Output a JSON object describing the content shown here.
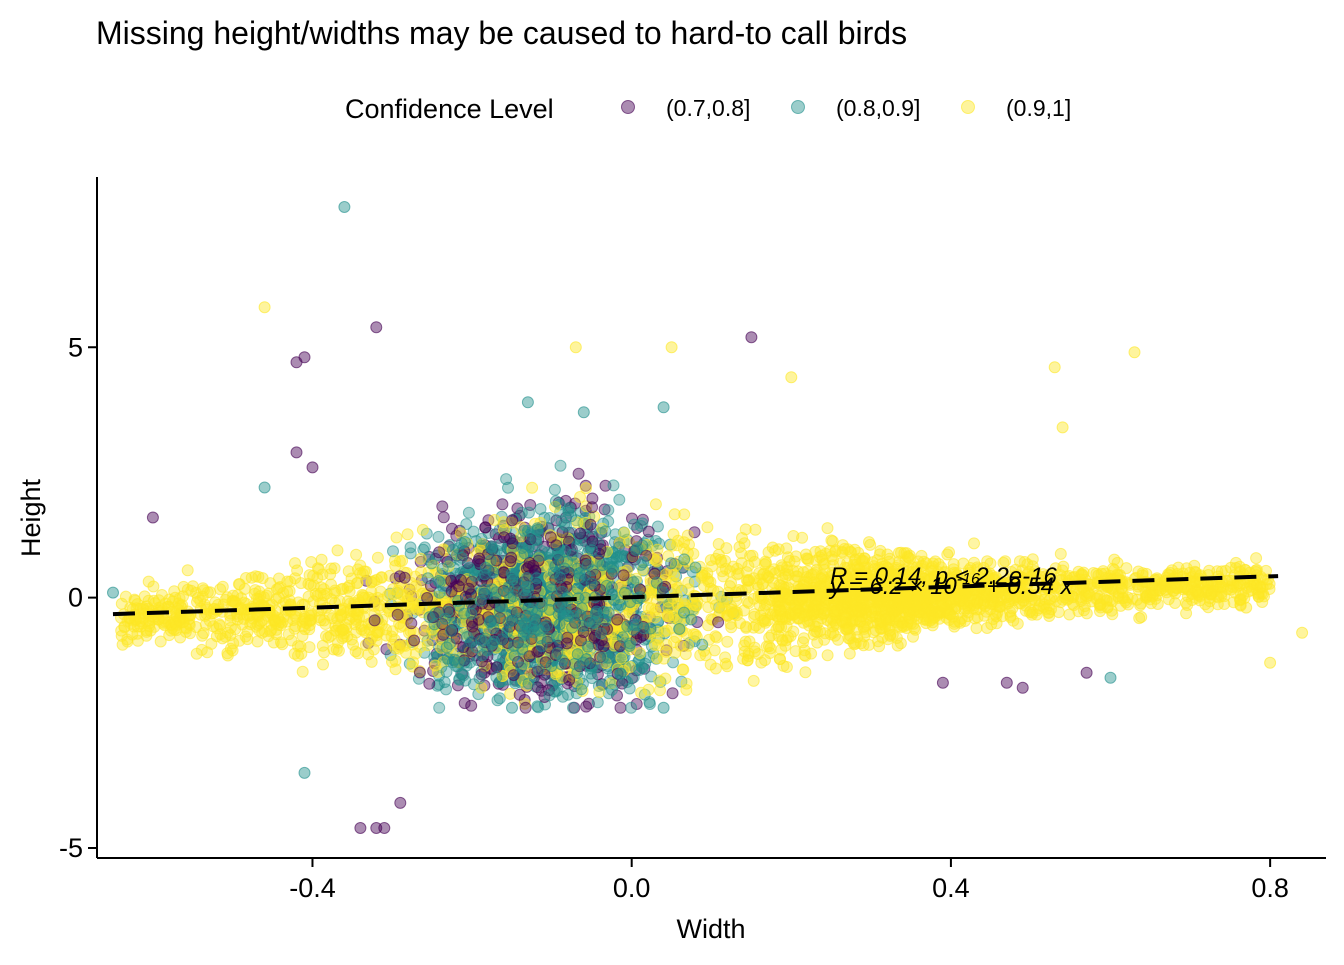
{
  "chart_data": {
    "type": "scatter",
    "title": "Missing height/widths may be caused to hard-to call birds",
    "xlabel": "Width",
    "ylabel": "Height",
    "xlim": [
      -0.67,
      0.87
    ],
    "ylim": [
      -5.2,
      8.4
    ],
    "x_ticks": [
      -0.4,
      0.0,
      0.4,
      0.8
    ],
    "x_tick_labels": [
      "-0.4",
      "0.0",
      "0.4",
      "0.8"
    ],
    "y_ticks": [
      -5,
      0,
      5
    ],
    "y_tick_labels": [
      "-5",
      "0",
      "5"
    ],
    "grid": false,
    "legend": {
      "title": "Confidence Level",
      "position": "top",
      "entries": [
        {
          "label": "(0.7,0.8]",
          "color": "#440154"
        },
        {
          "label": "(0.8,0.9]",
          "color": "#21908C"
        },
        {
          "label": "(0.9,1]",
          "color": "#FDE725"
        }
      ]
    },
    "regression": {
      "style": "dashed",
      "color": "#000000",
      "points": [
        [
          -0.65,
          -0.33
        ],
        [
          0.81,
          0.43
        ]
      ],
      "annotation_line1": "R = 0.14, p < 2.2e-16",
      "annotation_line2": "y = 6.2 × 10",
      "annotation_line2_exp": "-16",
      "annotation_line2_rest": " + 0.54 x"
    },
    "series": [
      {
        "name": "(0.9,1]",
        "color": "#FDE725",
        "notable_points": [
          [
            -0.46,
            5.8
          ],
          [
            0.05,
            5.0
          ],
          [
            -0.07,
            5.0
          ],
          [
            0.63,
            4.9
          ],
          [
            0.53,
            4.6
          ],
          [
            0.54,
            3.4
          ],
          [
            0.2,
            4.4
          ],
          [
            0.8,
            -1.3
          ],
          [
            0.84,
            -0.7
          ],
          [
            0.77,
            -0.2
          ]
        ]
      },
      {
        "name": "(0.8,0.9]",
        "color": "#21908C",
        "notable_points": [
          [
            -0.36,
            7.8
          ],
          [
            -0.41,
            -3.5
          ],
          [
            -0.13,
            3.9
          ],
          [
            -0.06,
            3.7
          ],
          [
            0.04,
            3.8
          ],
          [
            0.6,
            -1.6
          ],
          [
            -0.65,
            0.1
          ],
          [
            0.04,
            -2.2
          ],
          [
            -0.15,
            -2.2
          ],
          [
            -0.46,
            2.2
          ]
        ]
      },
      {
        "name": "(0.7,0.8]",
        "color": "#440154",
        "notable_points": [
          [
            -0.32,
            5.4
          ],
          [
            -0.42,
            4.7
          ],
          [
            -0.41,
            4.8
          ],
          [
            0.15,
            5.2
          ],
          [
            -0.34,
            -4.6
          ],
          [
            -0.32,
            -4.6
          ],
          [
            -0.31,
            -4.6
          ],
          [
            -0.29,
            -4.1
          ],
          [
            -0.6,
            1.6
          ],
          [
            -0.42,
            2.9
          ],
          [
            -0.4,
            2.6
          ],
          [
            0.47,
            -1.7
          ],
          [
            0.49,
            -1.8
          ],
          [
            0.57,
            -1.5
          ],
          [
            0.39,
            -1.7
          ]
        ]
      }
    ]
  }
}
